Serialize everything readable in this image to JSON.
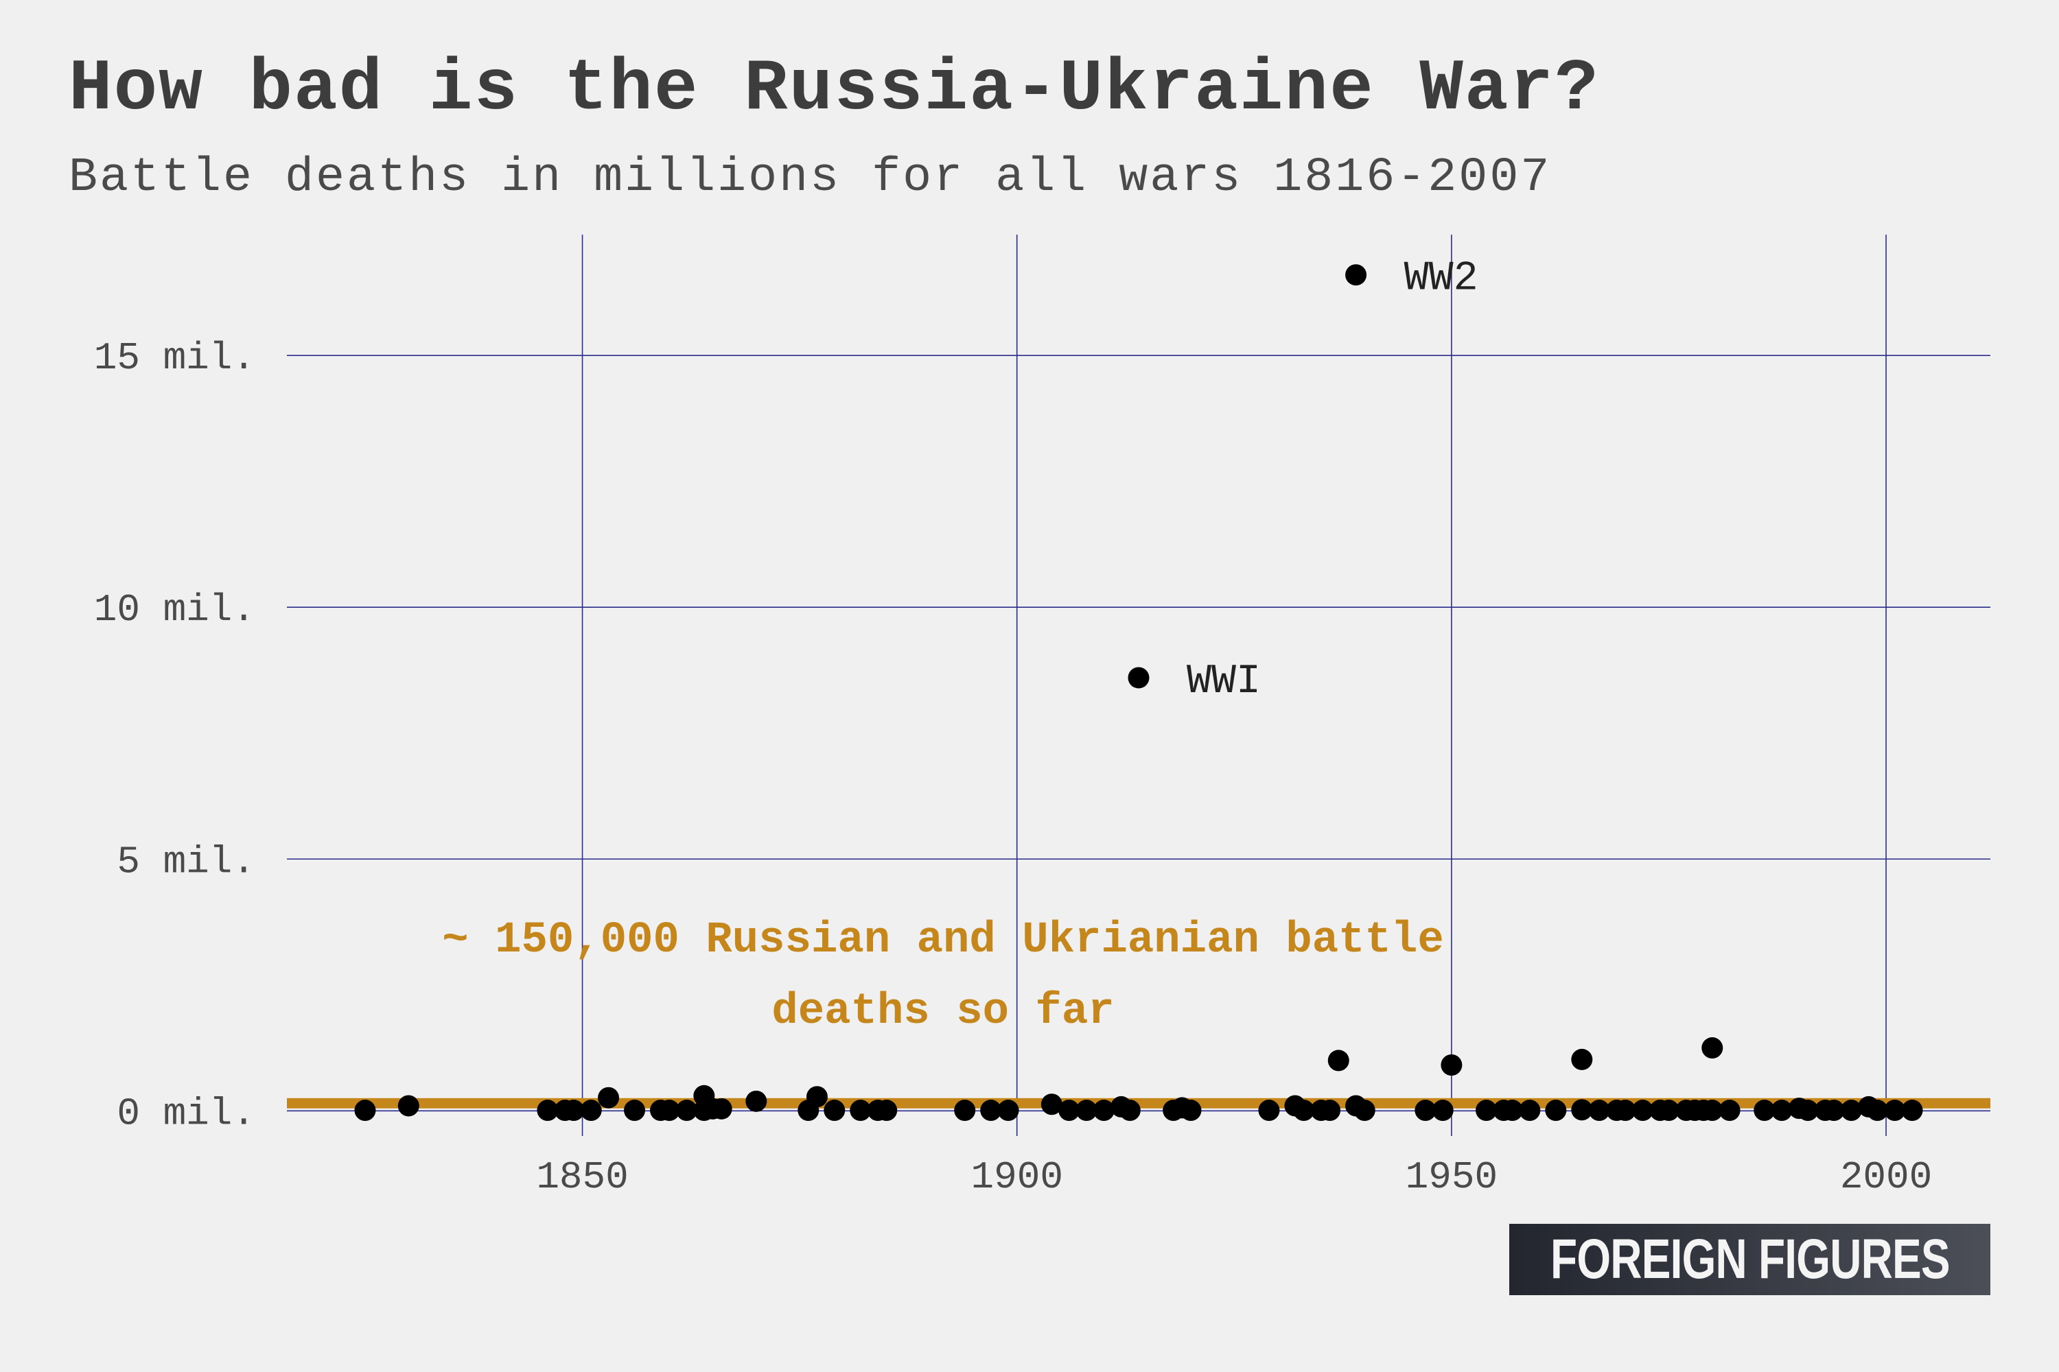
{
  "chart_data": {
    "type": "scatter",
    "title": "How bad is the Russia-Ukraine War?",
    "subtitle": "Battle deaths in millions for all wars 1816-2007",
    "xlim": [
      1816,
      2012
    ],
    "ylim": [
      -0.5,
      17.4
    ],
    "x_ticks": [
      1850,
      1900,
      1950,
      2000
    ],
    "x_tick_labels": [
      "1850",
      "1900",
      "1950",
      "2000"
    ],
    "y_ticks": [
      0,
      5,
      10,
      15
    ],
    "y_tick_labels": [
      "0 mil.",
      "5 mil.",
      "10 mil.",
      "15 mil."
    ],
    "grid": true,
    "point_color": "#000000",
    "reference_line": {
      "y": 0.15,
      "color": "#c5861b",
      "label_line1": "~ 150,000 Russian and Ukrianian battle",
      "label_line2": "deaths so far"
    },
    "labeled_points": [
      {
        "x": 1939,
        "y": 16.6,
        "label": "WW2"
      },
      {
        "x": 1914,
        "y": 8.6,
        "label": "WWI"
      }
    ],
    "points": [
      {
        "x": 1825,
        "y": 0.01
      },
      {
        "x": 1830,
        "y": 0.1
      },
      {
        "x": 1846,
        "y": 0.01
      },
      {
        "x": 1848,
        "y": 0.01
      },
      {
        "x": 1849,
        "y": 0.01
      },
      {
        "x": 1851,
        "y": 0.01
      },
      {
        "x": 1853,
        "y": 0.26
      },
      {
        "x": 1856,
        "y": 0.01
      },
      {
        "x": 1859,
        "y": 0.01
      },
      {
        "x": 1860,
        "y": 0.01
      },
      {
        "x": 1862,
        "y": 0.01
      },
      {
        "x": 1864,
        "y": 0.01
      },
      {
        "x": 1864,
        "y": 0.3
      },
      {
        "x": 1865,
        "y": 0.04
      },
      {
        "x": 1866,
        "y": 0.04
      },
      {
        "x": 1870,
        "y": 0.19
      },
      {
        "x": 1876,
        "y": 0.01
      },
      {
        "x": 1877,
        "y": 0.28
      },
      {
        "x": 1879,
        "y": 0.01
      },
      {
        "x": 1882,
        "y": 0.01
      },
      {
        "x": 1884,
        "y": 0.01
      },
      {
        "x": 1885,
        "y": 0.01
      },
      {
        "x": 1894,
        "y": 0.01
      },
      {
        "x": 1897,
        "y": 0.01
      },
      {
        "x": 1899,
        "y": 0.01
      },
      {
        "x": 1904,
        "y": 0.13
      },
      {
        "x": 1906,
        "y": 0.01
      },
      {
        "x": 1908,
        "y": 0.01
      },
      {
        "x": 1910,
        "y": 0.01
      },
      {
        "x": 1912,
        "y": 0.08
      },
      {
        "x": 1913,
        "y": 0.01
      },
      {
        "x": 1918,
        "y": 0.01
      },
      {
        "x": 1919,
        "y": 0.06
      },
      {
        "x": 1920,
        "y": 0.01
      },
      {
        "x": 1929,
        "y": 0.01
      },
      {
        "x": 1932,
        "y": 0.1
      },
      {
        "x": 1933,
        "y": 0.01
      },
      {
        "x": 1935,
        "y": 0.01
      },
      {
        "x": 1936,
        "y": 0.01
      },
      {
        "x": 1937,
        "y": 1.0
      },
      {
        "x": 1939,
        "y": 0.1
      },
      {
        "x": 1940,
        "y": 0.01
      },
      {
        "x": 1947,
        "y": 0.01
      },
      {
        "x": 1949,
        "y": 0.01
      },
      {
        "x": 1950,
        "y": 0.91
      },
      {
        "x": 1954,
        "y": 0.01
      },
      {
        "x": 1956,
        "y": 0.01
      },
      {
        "x": 1957,
        "y": 0.01
      },
      {
        "x": 1959,
        "y": 0.01
      },
      {
        "x": 1962,
        "y": 0.01
      },
      {
        "x": 1965,
        "y": 1.02
      },
      {
        "x": 1965,
        "y": 0.02
      },
      {
        "x": 1967,
        "y": 0.01
      },
      {
        "x": 1969,
        "y": 0.01
      },
      {
        "x": 1970,
        "y": 0.01
      },
      {
        "x": 1972,
        "y": 0.01
      },
      {
        "x": 1974,
        "y": 0.01
      },
      {
        "x": 1975,
        "y": 0.01
      },
      {
        "x": 1977,
        "y": 0.01
      },
      {
        "x": 1978,
        "y": 0.01
      },
      {
        "x": 1979,
        "y": 0.01
      },
      {
        "x": 1980,
        "y": 1.25
      },
      {
        "x": 1980,
        "y": 0.01
      },
      {
        "x": 1982,
        "y": 0.01
      },
      {
        "x": 1986,
        "y": 0.01
      },
      {
        "x": 1988,
        "y": 0.01
      },
      {
        "x": 1990,
        "y": 0.05
      },
      {
        "x": 1991,
        "y": 0.01
      },
      {
        "x": 1993,
        "y": 0.01
      },
      {
        "x": 1994,
        "y": 0.01
      },
      {
        "x": 1996,
        "y": 0.01
      },
      {
        "x": 1998,
        "y": 0.08
      },
      {
        "x": 1999,
        "y": 0.01
      },
      {
        "x": 2001,
        "y": 0.01
      },
      {
        "x": 2003,
        "y": 0.01
      }
    ]
  },
  "logo": {
    "text": "FOREIGN FIGURES"
  }
}
